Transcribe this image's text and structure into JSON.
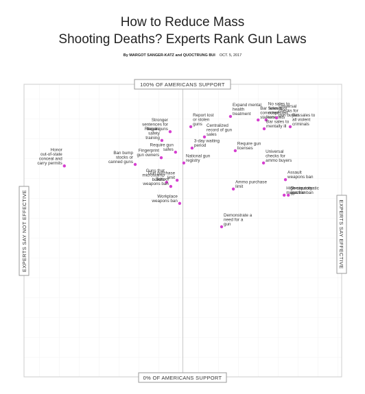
{
  "chart_data": {
    "type": "scatter",
    "title": "How to Reduce Mass Shooting Deaths? Experts Rank Gun Laws",
    "byline": "By MARGOT SANGER-KATZ and QUOCTRUNG BUI",
    "date": "OCT. 5, 2017",
    "y_top_label": "100% OF AMERICANS SUPPORT",
    "y_bottom_label": "0% OF AMERICANS SUPPORT",
    "x_left_label": "EXPERTS SAY NOT EFFECTIVE",
    "x_right_label": "EXPERTS SAY EFFECTIVE",
    "xlim": [
      0,
      100
    ],
    "ylim": [
      0,
      100
    ],
    "color": "#d63fd0",
    "labels": [
      "Honor out-of-state conceal and carry permits",
      "Ban bump stocks or canned guns",
      "Fingerprint gun owners",
      "Require gun safes",
      "Require safety training",
      "Stronger sentences for illegal guns",
      "Report lost or stolen guns",
      "Expand mental health treatment",
      "Centralized record of gun sales",
      "3-day waiting period",
      "National gun registry",
      "Require gun licenses",
      "Bar sales to convicted stalkers",
      "No sales to \"known or suspected\" terrorists",
      "Universal checks for gun buyers",
      "Bar sales to all violent criminals",
      "Bar sales to mentally ill",
      "Universal checks for ammo buyers",
      "Assault weapons ban",
      "Semiautomatic gun ban",
      "High-capacity magazine ban",
      "Gun purchase limit",
      "Guns that microstamp bullets",
      "School weapons ban",
      "Ammo purchase limit",
      "Workplace weapons ban",
      "Demonstrate a need for a gun"
    ],
    "x": [
      12.7,
      35,
      43.2,
      47.7,
      43.4,
      46,
      52.5,
      65,
      56.8,
      52.9,
      50.3,
      66.5,
      73.7,
      76.2,
      79.5,
      83.8,
      75.6,
      75.4,
      82.3,
      83.2,
      81.9,
      48.2,
      44.9,
      46.2,
      65.9,
      49,
      62.2
    ],
    "values": [
      72.1,
      72.6,
      74.9,
      76.8,
      80.8,
      83.8,
      85.5,
      89,
      82,
      78.2,
      73.1,
      77.3,
      87.8,
      87.8,
      88.5,
      85.5,
      84.8,
      73.1,
      67.4,
      62.1,
      62.1,
      67.2,
      66.5,
      65.1,
      64.2,
      59.3,
      51.3
    ]
  }
}
